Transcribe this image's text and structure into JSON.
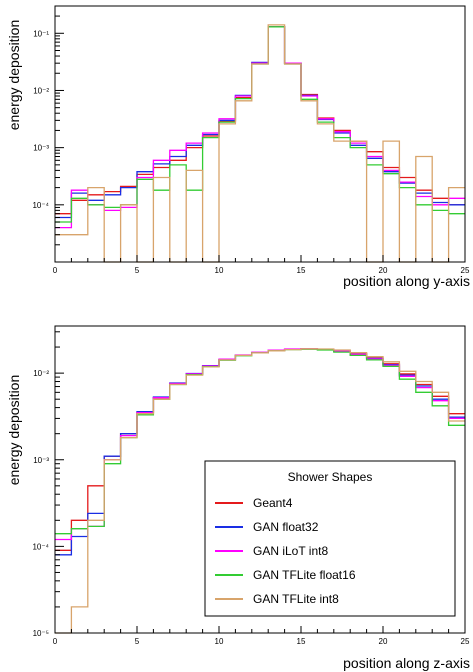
{
  "chart_data": [
    {
      "type": "line",
      "step": true,
      "yscale": "log",
      "xlabel": "position along y-axis",
      "ylabel": "energy deposition",
      "xlim": [
        0,
        25
      ],
      "ylim": [
        1e-05,
        0.3
      ],
      "x_ticks": [
        {
          "v": 0,
          "l": "0"
        },
        {
          "v": 5,
          "l": "5"
        },
        {
          "v": 10,
          "l": "10"
        },
        {
          "v": 15,
          "l": "15"
        },
        {
          "v": 20,
          "l": "20"
        },
        {
          "v": 25,
          "l": "25"
        }
      ],
      "y_ticks": [
        {
          "v": 0.1,
          "l": "10⁻¹"
        },
        {
          "v": 0.01,
          "l": "10⁻²"
        },
        {
          "v": 0.001,
          "l": "10⁻³"
        },
        {
          "v": 0.0001,
          "l": "10⁻⁴"
        }
      ],
      "series": [
        {
          "name": "Geant4",
          "color": "#e41a1c",
          "values": [
            7e-05,
            0.00012,
            0.00015,
            0.00017,
            0.00021,
            0.00034,
            0.00045,
            0.0006,
            0.001,
            0.0016,
            0.0029,
            0.0075,
            0.03,
            0.13,
            0.03,
            0.0085,
            0.0033,
            0.002,
            0.0013,
            0.00085,
            0.00045,
            0.0003,
            0.00018,
            0.00013,
            0.0001
          ]
        },
        {
          "name": "GAN float32",
          "color": "#1a2ee4",
          "values": [
            6e-05,
            0.00016,
            0.00012,
            0.00015,
            0.0002,
            0.00038,
            0.00052,
            0.0007,
            0.0011,
            0.0017,
            0.003,
            0.0082,
            0.031,
            0.13,
            0.03,
            0.0082,
            0.0031,
            0.0018,
            0.0011,
            0.00065,
            0.00038,
            0.00024,
            0.00016,
            0.00011,
            0.0001
          ]
        },
        {
          "name": "GAN iLoT int8",
          "color": "#ff00ff",
          "values": [
            4e-05,
            0.00018,
            0.0001,
            8e-05,
            9e-05,
            0.0003,
            0.0006,
            0.0009,
            0.0012,
            0.0018,
            0.0032,
            0.008,
            0.03,
            0.13,
            0.03,
            0.008,
            0.0032,
            0.0019,
            0.0012,
            0.0007,
            0.0004,
            0.00025,
            0.00014,
            0.0001,
            0.00013
          ]
        },
        {
          "name": "GAN TFLite float16",
          "color": "#33cc33",
          "values": [
            5e-05,
            0.00013,
            0.0001,
            9e-05,
            0.0001,
            0.00028,
            0.00018,
            0.0005,
            0.00018,
            0.0015,
            0.0028,
            0.0072,
            0.029,
            0.13,
            0.029,
            0.007,
            0.0028,
            0.0015,
            0.001,
            0.0005,
            0.00035,
            0.0002,
            0.0001,
            8e-05,
            7e-05
          ]
        },
        {
          "name": "GAN TFLite int8",
          "color": "#d8a46b",
          "values": [
            3e-05,
            3e-05,
            0.0002,
            1e-05,
            0.0001,
            1e-05,
            0.0003,
            1e-05,
            0.0004,
            1e-05,
            0.0026,
            0.0066,
            0.029,
            0.14,
            0.029,
            0.0066,
            0.0026,
            0.0013,
            0.0013,
            1e-05,
            0.0013,
            1e-05,
            0.0007,
            1e-05,
            0.0002
          ]
        }
      ]
    },
    {
      "type": "line",
      "step": true,
      "yscale": "log",
      "xlabel": "position along z-axis",
      "ylabel": "energy deposition",
      "xlim": [
        0,
        25
      ],
      "ylim": [
        1e-05,
        0.035
      ],
      "x_ticks": [
        {
          "v": 0,
          "l": "0"
        },
        {
          "v": 5,
          "l": "5"
        },
        {
          "v": 10,
          "l": "10"
        },
        {
          "v": 15,
          "l": "15"
        },
        {
          "v": 20,
          "l": "20"
        },
        {
          "v": 25,
          "l": "25"
        }
      ],
      "y_ticks": [
        {
          "v": 0.01,
          "l": "10⁻²"
        },
        {
          "v": 0.001,
          "l": "10⁻³"
        },
        {
          "v": 0.0001,
          "l": "10⁻⁴"
        },
        {
          "v": 1e-05,
          "l": "10⁻⁵"
        }
      ],
      "legend": {
        "title": "Shower Shapes",
        "placement": "bottom-right"
      },
      "series": [
        {
          "name": "Geant4",
          "color": "#e41a1c",
          "values": [
            9e-05,
            0.0002,
            0.0005,
            0.0011,
            0.002,
            0.0035,
            0.0052,
            0.0075,
            0.0098,
            0.012,
            0.0142,
            0.016,
            0.0172,
            0.0182,
            0.0188,
            0.019,
            0.0188,
            0.018,
            0.0168,
            0.015,
            0.0128,
            0.0098,
            0.0074,
            0.0054,
            0.0034
          ]
        },
        {
          "name": "GAN float32",
          "color": "#1a2ee4",
          "values": [
            8e-05,
            0.00013,
            0.00024,
            0.0011,
            0.002,
            0.0036,
            0.0053,
            0.0077,
            0.0099,
            0.0122,
            0.0143,
            0.0161,
            0.0173,
            0.0183,
            0.0189,
            0.0191,
            0.0187,
            0.0179,
            0.0166,
            0.0148,
            0.0125,
            0.0095,
            0.0071,
            0.005,
            0.0031
          ]
        },
        {
          "name": "GAN iLoT int8",
          "color": "#ff00ff",
          "values": [
            0.00012,
            0.00016,
            0.00017,
            0.001,
            0.0019,
            0.0035,
            0.0052,
            0.0076,
            0.0098,
            0.0121,
            0.0145,
            0.0162,
            0.0174,
            0.0184,
            0.019,
            0.0192,
            0.0188,
            0.018,
            0.0165,
            0.0146,
            0.0123,
            0.0092,
            0.0068,
            0.0048,
            0.003
          ]
        },
        {
          "name": "GAN TFLite float16",
          "color": "#33cc33",
          "values": [
            0.00014,
            0.00016,
            0.00017,
            0.0009,
            0.0018,
            0.0033,
            0.005,
            0.0074,
            0.0096,
            0.0119,
            0.0141,
            0.0159,
            0.0171,
            0.0181,
            0.0187,
            0.0189,
            0.0185,
            0.0175,
            0.016,
            0.0142,
            0.012,
            0.0085,
            0.006,
            0.0042,
            0.0025
          ]
        },
        {
          "name": "GAN TFLite int8",
          "color": "#d8a46b",
          "values": [
            1e-05,
            2e-05,
            0.0002,
            0.001,
            0.0018,
            0.0034,
            0.005,
            0.0074,
            0.0095,
            0.0118,
            0.0142,
            0.016,
            0.0171,
            0.0181,
            0.0187,
            0.0191,
            0.019,
            0.0185,
            0.0172,
            0.0155,
            0.0135,
            0.0105,
            0.008,
            0.006,
            0.0028
          ]
        }
      ]
    }
  ]
}
